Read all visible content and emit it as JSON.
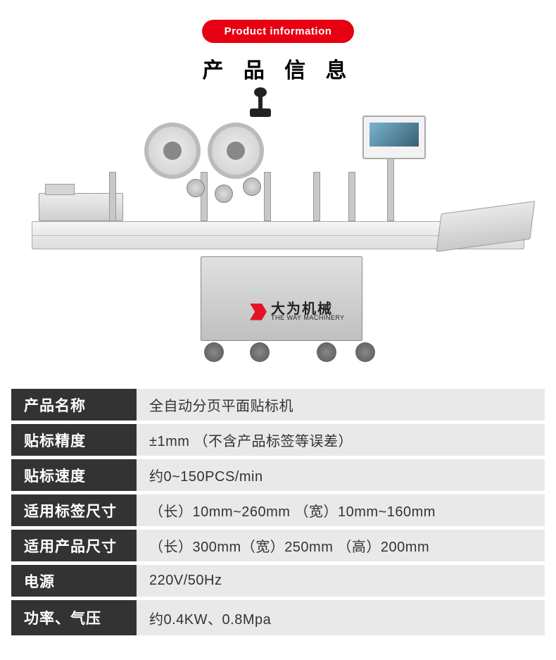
{
  "header": {
    "pill_en": "Product information",
    "title_cn": "产 品 信 息"
  },
  "watermark": {
    "cn": "大为机械",
    "en": "THE WAY MACHINERY",
    "logo_color": "#e60012"
  },
  "table": {
    "label_bg": "#333333",
    "label_color": "#ffffff",
    "value_bg": "#e9e9e9",
    "value_color": "#333333",
    "row_gap_color": "#ffffff",
    "rows": [
      {
        "label": "产品名称",
        "value": "全自动分页平面贴标机"
      },
      {
        "label": "贴标精度",
        "value": "±1mm （不含产品标签等误差）"
      },
      {
        "label": "贴标速度",
        "value": "约0~150PCS/min"
      },
      {
        "label": "适用标签尺寸",
        "value": "（长）10mm~260mm （宽）10mm~160mm"
      },
      {
        "label": "适用产品尺寸",
        "value": "（长）300mm（宽）250mm （高）200mm"
      },
      {
        "label": "电源",
        "value": "220V/50Hz"
      },
      {
        "label": "功率、气压",
        "value": "约0.4KW、0.8Mpa"
      }
    ]
  },
  "colors": {
    "accent": "#e60012",
    "page_bg": "#ffffff"
  }
}
